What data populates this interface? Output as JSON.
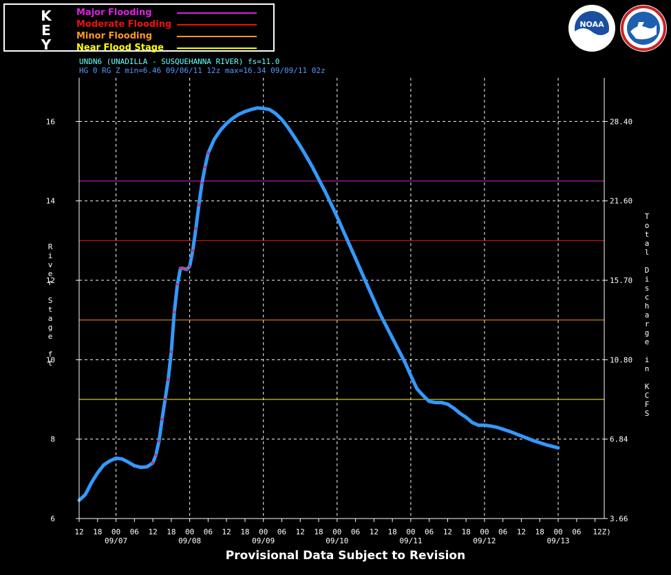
{
  "key": {
    "letters": [
      "K",
      "E",
      "Y"
    ],
    "items": [
      {
        "label": "Major Flooding",
        "color": "#dd22dd"
      },
      {
        "label": "Moderate Flooding",
        "color": "#ee1111"
      },
      {
        "label": "Minor Flooding",
        "color": "#ff9922"
      },
      {
        "label": "Near Flood Stage",
        "color": "#ffff00"
      }
    ]
  },
  "header": {
    "line1": "UNDN6 (UNADILLA - SUSQUEHANNA RIVER) fs=11.0",
    "line2": "HG 0 RG Z min=6.46 09/06/11 12z max=16.34 09/09/11 02z"
  },
  "footer": "Provisional Data Subject to Revision",
  "logos": {
    "noaa": {
      "icon": "noaa-logo-icon",
      "text": "NOAA"
    },
    "nws": {
      "icon": "nws-logo-icon"
    }
  },
  "chart_data": {
    "type": "line",
    "ylabel_left": "River Stage ft",
    "ylabel_right": "Total Discharge in KCFS",
    "ylim": [
      6,
      17.1
    ],
    "yticks": [
      6,
      8,
      10,
      12,
      14,
      16
    ],
    "yticks_right": [
      "3.66",
      "6.84",
      "10.80",
      "15.70",
      "21.60",
      "28.40"
    ],
    "xlim_hours": [
      0,
      171
    ],
    "xtick_labels": [
      "12",
      "18",
      "00",
      "06",
      "12",
      "18",
      "00",
      "06",
      "12",
      "18",
      "00",
      "06",
      "12",
      "18",
      "00",
      "06",
      "12",
      "18",
      "00",
      "06",
      "12",
      "18",
      "00",
      "06",
      "12",
      "18",
      "00",
      "06",
      "12Z)"
    ],
    "date_labels": [
      {
        "label": "09/07",
        "hour": 12
      },
      {
        "label": "09/08",
        "hour": 36
      },
      {
        "label": "09/09",
        "hour": 60
      },
      {
        "label": "09/10",
        "hour": 84
      },
      {
        "label": "09/11",
        "hour": 108
      },
      {
        "label": "09/12",
        "hour": 132
      },
      {
        "label": "09/13",
        "hour": 156
      }
    ],
    "thresholds": [
      {
        "name": "Major Flooding",
        "value": 14.5,
        "color": "#dd22dd"
      },
      {
        "name": "Moderate Flooding",
        "value": 13.0,
        "color": "#ee1111"
      },
      {
        "name": "Minor Flooding",
        "value": 11.0,
        "color": "#ff9922"
      },
      {
        "name": "Near Flood Stage",
        "value": 9.0,
        "color": "#ffff00"
      }
    ],
    "grid": true,
    "series": [
      {
        "color": "#3399ff",
        "observed_color": "#cc3366",
        "points": [
          [
            0,
            6.46
          ],
          [
            2,
            6.6
          ],
          [
            4,
            6.9
          ],
          [
            6,
            7.15
          ],
          [
            8,
            7.35
          ],
          [
            10,
            7.45
          ],
          [
            12,
            7.52
          ],
          [
            14,
            7.5
          ],
          [
            16,
            7.42
          ],
          [
            18,
            7.33
          ],
          [
            20,
            7.29
          ],
          [
            22,
            7.3
          ],
          [
            24,
            7.4
          ],
          [
            25,
            7.6
          ],
          [
            26,
            7.95
          ],
          [
            27,
            8.5
          ],
          [
            28,
            9.0
          ],
          [
            29,
            9.5
          ],
          [
            30,
            10.2
          ],
          [
            31,
            11.2
          ],
          [
            32,
            11.9
          ],
          [
            33,
            12.3
          ],
          [
            34,
            12.3
          ],
          [
            35,
            12.27
          ],
          [
            36,
            12.35
          ],
          [
            37,
            12.75
          ],
          [
            38,
            13.3
          ],
          [
            39,
            13.9
          ],
          [
            40,
            14.45
          ],
          [
            41,
            14.85
          ],
          [
            42,
            15.2
          ],
          [
            44,
            15.55
          ],
          [
            46,
            15.78
          ],
          [
            48,
            15.95
          ],
          [
            50,
            16.08
          ],
          [
            52,
            16.18
          ],
          [
            54,
            16.25
          ],
          [
            56,
            16.3
          ],
          [
            58,
            16.34
          ],
          [
            60,
            16.33
          ],
          [
            62,
            16.3
          ],
          [
            64,
            16.2
          ],
          [
            66,
            16.05
          ],
          [
            68,
            15.85
          ],
          [
            70,
            15.62
          ],
          [
            72,
            15.38
          ],
          [
            74,
            15.12
          ],
          [
            76,
            14.85
          ],
          [
            78,
            14.55
          ],
          [
            80,
            14.25
          ],
          [
            82,
            13.93
          ],
          [
            84,
            13.6
          ],
          [
            86,
            13.25
          ],
          [
            88,
            12.9
          ],
          [
            90,
            12.55
          ],
          [
            92,
            12.2
          ],
          [
            94,
            11.85
          ],
          [
            96,
            11.5
          ],
          [
            98,
            11.15
          ],
          [
            100,
            10.85
          ],
          [
            102,
            10.55
          ],
          [
            104,
            10.25
          ],
          [
            106,
            9.95
          ],
          [
            108,
            9.6
          ],
          [
            110,
            9.27
          ],
          [
            112,
            9.1
          ],
          [
            114,
            8.95
          ],
          [
            116,
            8.92
          ],
          [
            118,
            8.92
          ],
          [
            120,
            8.88
          ],
          [
            122,
            8.78
          ],
          [
            124,
            8.65
          ],
          [
            126,
            8.55
          ],
          [
            128,
            8.42
          ],
          [
            130,
            8.35
          ],
          [
            132,
            8.35
          ],
          [
            134,
            8.33
          ],
          [
            136,
            8.3
          ],
          [
            138,
            8.25
          ],
          [
            140,
            8.2
          ],
          [
            142,
            8.14
          ],
          [
            144,
            8.08
          ],
          [
            146,
            8.02
          ],
          [
            148,
            7.96
          ],
          [
            150,
            7.91
          ],
          [
            152,
            7.86
          ],
          [
            154,
            7.82
          ],
          [
            156,
            7.78
          ]
        ]
      }
    ]
  }
}
